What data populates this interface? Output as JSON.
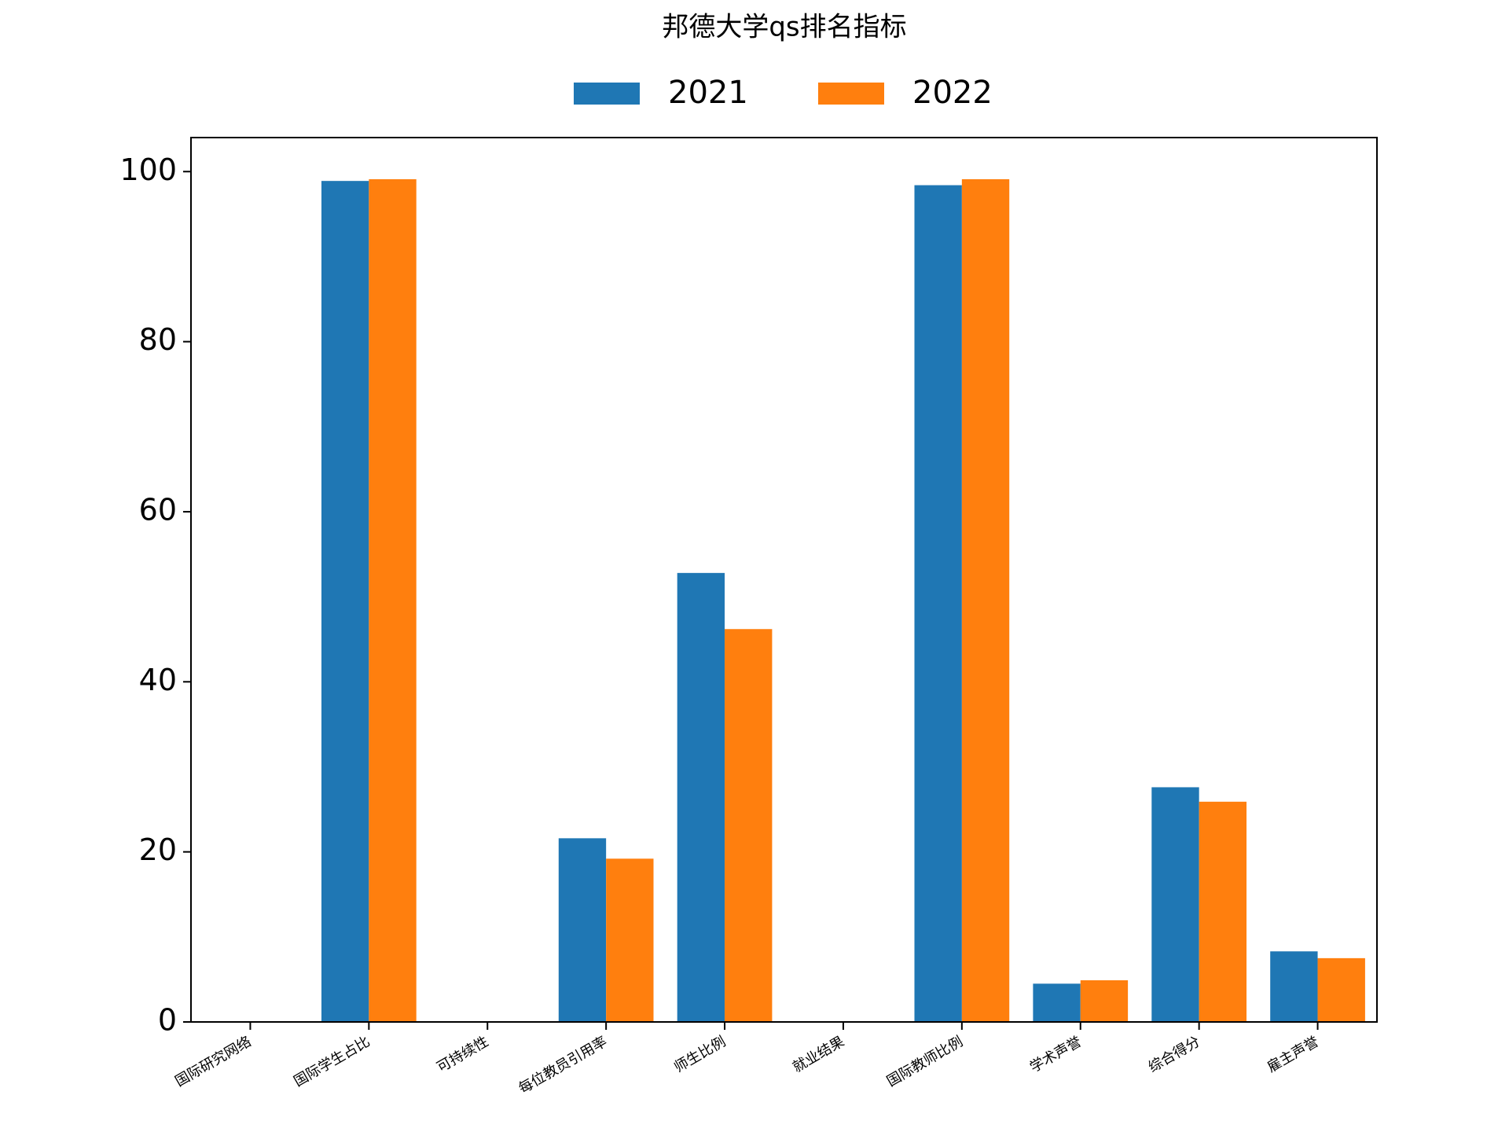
{
  "chart_data": {
    "type": "bar",
    "title": "邦德大学qs排名指标",
    "categories": [
      "国际研究网络",
      "国际学生占比",
      "可持续性",
      "每位教员引用率",
      "师生比例",
      "就业结果",
      "国际教师比例",
      "学术声誉",
      "综合得分",
      "雇主声誉"
    ],
    "series": [
      {
        "name": "2021",
        "color": "#1f77b4",
        "values": [
          0,
          98.9,
          0,
          21.6,
          52.8,
          0,
          98.4,
          4.5,
          27.6,
          8.3
        ]
      },
      {
        "name": "2022",
        "color": "#ff7f0e",
        "values": [
          0,
          99.1,
          0,
          19.2,
          46.2,
          0,
          99.1,
          4.9,
          25.9,
          7.5
        ]
      }
    ],
    "ylim": [
      0,
      104
    ],
    "yticks": [
      0,
      20,
      40,
      60,
      80,
      100
    ],
    "legend": "top-center",
    "grid": false
  }
}
